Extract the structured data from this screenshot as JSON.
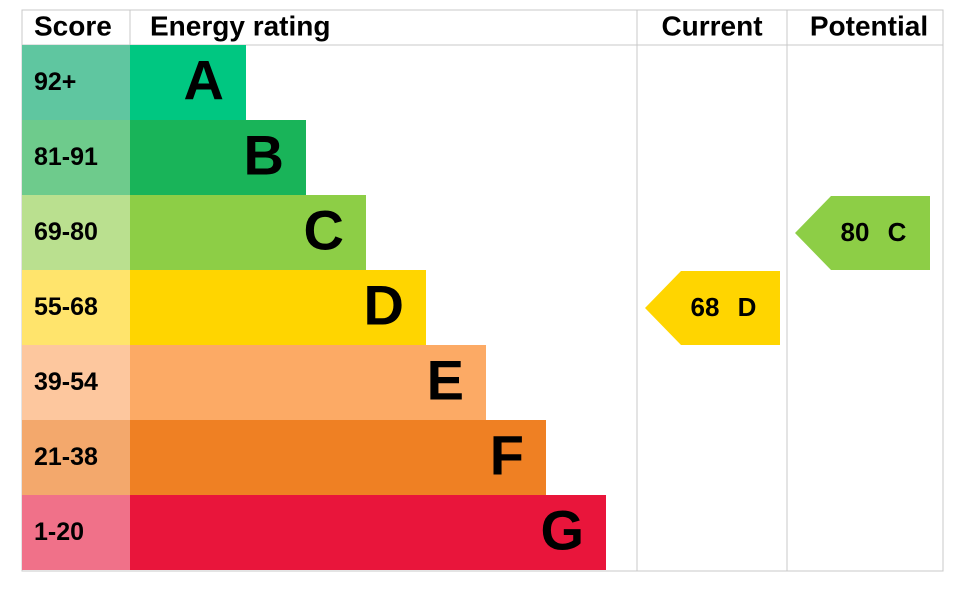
{
  "header": {
    "score": "Score",
    "rating": "Energy rating",
    "current": "Current",
    "potential": "Potential"
  },
  "bands": [
    {
      "score": "92+",
      "letter": "A",
      "color": "#00c781",
      "score_color": "#5fc6a0"
    },
    {
      "score": "81-91",
      "letter": "B",
      "color": "#19b459",
      "score_color": "#6ecb8c"
    },
    {
      "score": "69-80",
      "letter": "C",
      "color": "#8dce46",
      "score_color": "#bae08f"
    },
    {
      "score": "55-68",
      "letter": "D",
      "color": "#ffd500",
      "score_color": "#ffe46c"
    },
    {
      "score": "39-54",
      "letter": "E",
      "color": "#fcaa65",
      "score_color": "#fdc79e"
    },
    {
      "score": "21-38",
      "letter": "F",
      "color": "#ef8023",
      "score_color": "#f3a86c"
    },
    {
      "score": "1-20",
      "letter": "G",
      "color": "#e9153b",
      "score_color": "#f07189"
    }
  ],
  "current": {
    "value": "68",
    "rating": "D"
  },
  "potential": {
    "value": "80",
    "rating": "C"
  }
}
